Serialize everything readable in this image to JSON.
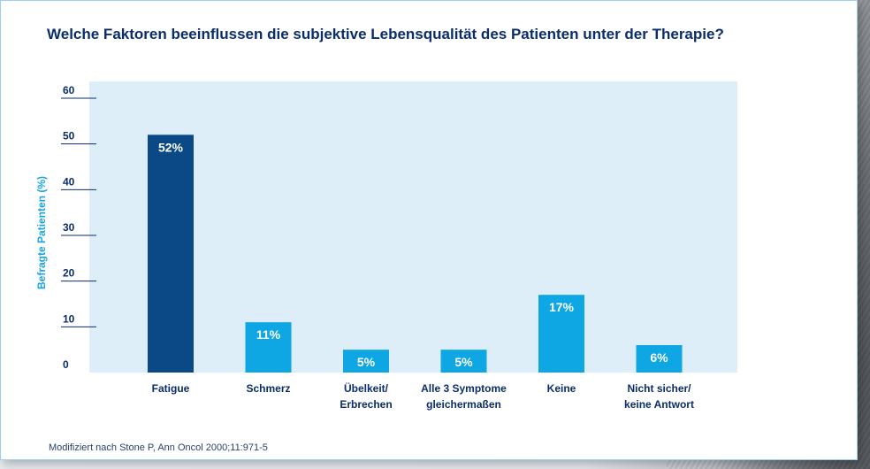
{
  "title": "Welche Faktoren beeinflussen die subjektive Lebensqualität des Patienten unter der Therapie?",
  "source": "Modifiziert nach Stone P, Ann Oncol 2000;11:971-5",
  "colors": {
    "highlight_bar": "#0a4985",
    "bar": "#0fa6e4",
    "plot_bg": "#ddeef9",
    "axis_text": "#0b2d6b",
    "ylabel": "#1aa6e0"
  },
  "chart_data": {
    "type": "bar",
    "title": "Welche Faktoren beeinflussen die subjektive Lebensqualität des Patienten unter der Therapie?",
    "xlabel": "",
    "ylabel": "Befragte Patienten (%)",
    "ylim": [
      0,
      60
    ],
    "yticks": [
      0,
      10,
      20,
      30,
      40,
      50,
      60
    ],
    "grid": false,
    "categories": [
      [
        "Fatigue"
      ],
      [
        "Schmerz"
      ],
      [
        "Übelkeit/",
        "Erbrechen"
      ],
      [
        "Alle 3 Symptome",
        "gleichermaßen"
      ],
      [
        "Keine"
      ],
      [
        "Nicht sicher/",
        "keine Antwort"
      ]
    ],
    "values": [
      52,
      11,
      5,
      5,
      17,
      6
    ],
    "data_labels": [
      "52%",
      "11%",
      "5%",
      "5%",
      "17%",
      "6%"
    ],
    "highlight_index": 0
  }
}
